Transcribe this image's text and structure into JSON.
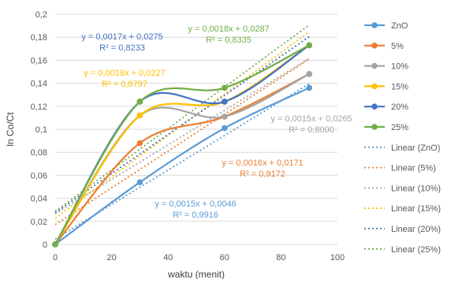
{
  "chart_data": {
    "type": "line",
    "title": "",
    "xlabel": "waktu (menit)",
    "ylabel": "ln Co/Ct",
    "xlim": [
      0,
      100
    ],
    "ylim": [
      0,
      0.2
    ],
    "x_ticks": [
      "0",
      "20",
      "40",
      "60",
      "80",
      "100"
    ],
    "y_ticks": [
      "0",
      "0,02",
      "0,04",
      "0,06",
      "0,08",
      "0,1",
      "0,12",
      "0,14",
      "0,16",
      "0,18",
      "0,2"
    ],
    "grid": true,
    "legend_position": "right",
    "x": [
      0,
      30,
      60,
      90
    ],
    "series": [
      {
        "name": "ZnO",
        "color": "#5B9BD5",
        "values": [
          0,
          0.054,
          0.101,
          0.136
        ],
        "trend": {
          "slope": 0.0015,
          "intercept": 0.0046,
          "equation": "y = 0,0015x + 0,0046",
          "r2": "R² = 0,9916"
        }
      },
      {
        "name": "5%",
        "color": "#ED7D31",
        "values": [
          0,
          0.088,
          0.111,
          0.148
        ],
        "trend": {
          "slope": 0.0016,
          "intercept": 0.0171,
          "equation": "y = 0,0016x + 0,0171",
          "r2": "R² = 0,9172"
        }
      },
      {
        "name": "10%",
        "color": "#A5A5A5",
        "values": [
          0,
          0.112,
          0.111,
          0.148
        ],
        "trend": {
          "slope": 0.0015,
          "intercept": 0.0265,
          "equation": "y = 0,0015x + 0,0265",
          "r2": "R² = 0,8000"
        }
      },
      {
        "name": "15%",
        "color": "#FFC000",
        "values": [
          0,
          0.112,
          0.124,
          0.173
        ],
        "trend": {
          "slope": 0.0018,
          "intercept": 0.0227,
          "equation": "y = 0,0018x + 0,0227",
          "r2": "R² = 0,8797"
        }
      },
      {
        "name": "20%",
        "color": "#4472C4",
        "values": [
          0,
          0.124,
          0.124,
          0.173
        ],
        "trend": {
          "slope": 0.0017,
          "intercept": 0.0275,
          "equation": "y = 0,0017x + 0,0275",
          "r2": "R² = 0,8233"
        }
      },
      {
        "name": "25%",
        "color": "#70AD47",
        "values": [
          0,
          0.124,
          0.136,
          0.173
        ],
        "trend": {
          "slope": 0.0018,
          "intercept": 0.0287,
          "equation": "y = 0,0018x + 0,0287",
          "r2": "R² = 0,8335"
        }
      }
    ],
    "linear_legend": [
      "Linear (ZnO)",
      "Linear (5%)",
      "Linear (10%)",
      "Linear (15%)",
      "Linear (20%)",
      "Linear (25%)"
    ]
  }
}
